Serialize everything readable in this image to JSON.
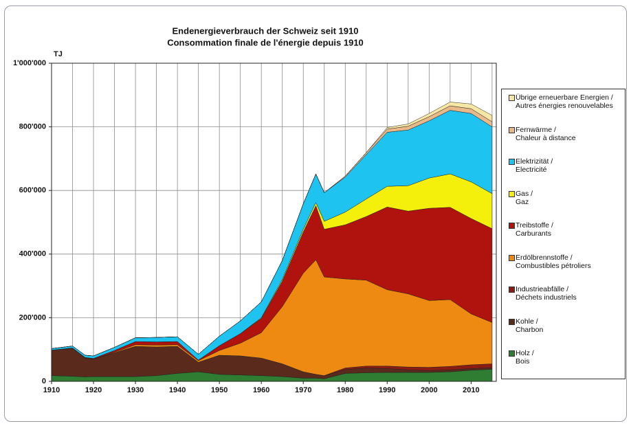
{
  "chart_data": {
    "type": "stacked-area",
    "title": "Endenergieverbrauch der Schweiz seit 1910",
    "subtitle": "Consommation finale de l'énergie depuis 1910",
    "y_label": "TJ",
    "x": [
      1910,
      1915,
      1918,
      1920,
      1925,
      1930,
      1935,
      1940,
      1945,
      1950,
      1955,
      1960,
      1965,
      1970,
      1973,
      1975,
      1980,
      1985,
      1990,
      1995,
      2000,
      2005,
      2010,
      2015
    ],
    "xlim": [
      1910,
      2016
    ],
    "xticks": [
      1910,
      1920,
      1930,
      1940,
      1950,
      1960,
      1970,
      1980,
      1990,
      2000,
      2010
    ],
    "xgrid": [
      1915,
      1925,
      1935,
      1945,
      1955,
      1965,
      1975,
      1985,
      1995,
      2005,
      2015
    ],
    "ylim": [
      0,
      1000000
    ],
    "yticks": [
      0,
      {
        "value": 200000,
        "label": "200'000"
      },
      {
        "value": 400000,
        "label": "400'000"
      },
      {
        "value": 600000,
        "label": "600'000"
      },
      {
        "value": 800000,
        "label": "800'000"
      },
      {
        "value": 1000000,
        "label": "1'000'000"
      }
    ],
    "grid": true,
    "series": [
      {
        "name": "Holz /\nBois",
        "color": "#2e7d32",
        "values": [
          18000,
          16000,
          14000,
          15000,
          15000,
          15000,
          18000,
          25000,
          30000,
          22000,
          20000,
          18000,
          15000,
          10000,
          10000,
          8000,
          25000,
          27000,
          28000,
          28000,
          28000,
          30000,
          35000,
          38000
        ]
      },
      {
        "name": "Kohle /\nCharbon",
        "color": "#5a2a1c",
        "values": [
          80000,
          88000,
          60000,
          55000,
          75000,
          95000,
          90000,
          85000,
          30000,
          60000,
          60000,
          55000,
          40000,
          20000,
          12000,
          10000,
          12000,
          15000,
          12000,
          8000,
          6000,
          6000,
          5000,
          5000
        ]
      },
      {
        "name": "Industrieabfälle /\nDéchets industriels",
        "color": "#8b1c14",
        "values": [
          0,
          0,
          0,
          0,
          0,
          0,
          0,
          0,
          0,
          0,
          0,
          0,
          0,
          0,
          0,
          0,
          5000,
          6000,
          8000,
          9000,
          10000,
          11000,
          12000,
          12000
        ]
      },
      {
        "name": "Erdölbrennstoffe /\nCombustibles pétroliers",
        "color": "#ee8a12",
        "values": [
          0,
          0,
          0,
          0,
          2000,
          5000,
          6000,
          5000,
          5000,
          15000,
          40000,
          80000,
          180000,
          310000,
          360000,
          310000,
          280000,
          270000,
          240000,
          230000,
          210000,
          210000,
          160000,
          130000
        ]
      },
      {
        "name": "Treibstoffe /\nCarburants",
        "color": "#b0130e",
        "values": [
          0,
          1000,
          1000,
          2000,
          5000,
          10000,
          10000,
          10000,
          2000,
          15000,
          30000,
          45000,
          80000,
          130000,
          170000,
          150000,
          170000,
          200000,
          260000,
          260000,
          290000,
          290000,
          300000,
          295000
        ]
      },
      {
        "name": "Gas /\nGaz",
        "color": "#f4f00c",
        "values": [
          0,
          0,
          0,
          0,
          0,
          0,
          0,
          0,
          0,
          0,
          0,
          2000,
          5000,
          8000,
          10000,
          25000,
          40000,
          55000,
          65000,
          80000,
          95000,
          105000,
          115000,
          110000
        ]
      },
      {
        "name": "Elektrizität /\nElectricité",
        "color": "#1ec3f0",
        "values": [
          5000,
          6000,
          7000,
          8000,
          10000,
          12000,
          14000,
          15000,
          18000,
          30000,
          40000,
          50000,
          60000,
          80000,
          90000,
          90000,
          110000,
          140000,
          170000,
          175000,
          180000,
          200000,
          215000,
          210000
        ]
      },
      {
        "name": "Fernwärme /\nChaleur à distance",
        "color": "#e9b98a",
        "values": [
          0,
          0,
          0,
          0,
          0,
          0,
          0,
          0,
          0,
          0,
          0,
          0,
          0,
          0,
          0,
          0,
          3000,
          6000,
          10000,
          12000,
          13000,
          14000,
          15000,
          16000
        ]
      },
      {
        "name": "Übrige erneuerbare Energien /\nAutres énergies renouvelables",
        "color": "#f7e7a4",
        "values": [
          0,
          0,
          0,
          0,
          0,
          0,
          0,
          0,
          0,
          0,
          0,
          0,
          0,
          0,
          0,
          0,
          0,
          0,
          5000,
          7000,
          10000,
          12000,
          15000,
          20000
        ]
      }
    ]
  }
}
